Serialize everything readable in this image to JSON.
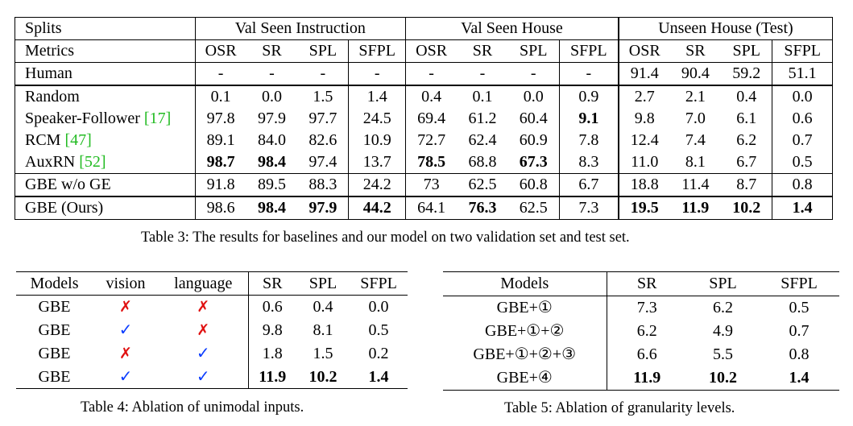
{
  "table3": {
    "header_groups": [
      "Splits",
      "Val Seen Instruction",
      "Val Seen House",
      "Unseen House (Test)"
    ],
    "metrics_label": "Metrics",
    "metrics": [
      "OSR",
      "SR",
      "SPL",
      "SFPL",
      "OSR",
      "SR",
      "SPL",
      "SFPL",
      "OSR",
      "SR",
      "SPL",
      "SFPL"
    ],
    "rows": [
      {
        "name": "Human",
        "cite": "",
        "values": [
          "-",
          "-",
          "-",
          "-",
          "-",
          "-",
          "-",
          "-",
          "91.4",
          "90.4",
          "59.2",
          "51.1"
        ],
        "bold": []
      },
      {
        "name": "Random",
        "cite": "",
        "values": [
          "0.1",
          "0.0",
          "1.5",
          "1.4",
          "0.4",
          "0.1",
          "0.0",
          "0.9",
          "2.7",
          "2.1",
          "0.4",
          "0.0"
        ],
        "bold": []
      },
      {
        "name": "Speaker-Follower",
        "cite": "17",
        "values": [
          "97.8",
          "97.9",
          "97.7",
          "24.5",
          "69.4",
          "61.2",
          "60.4",
          "9.1",
          "9.8",
          "7.0",
          "6.1",
          "0.6"
        ],
        "bold": [
          7
        ]
      },
      {
        "name": "RCM",
        "cite": "47",
        "values": [
          "89.1",
          "84.0",
          "82.6",
          "10.9",
          "72.7",
          "62.4",
          "60.9",
          "7.8",
          "12.4",
          "7.4",
          "6.2",
          "0.7"
        ],
        "bold": []
      },
      {
        "name": "AuxRN",
        "cite": "52",
        "values": [
          "98.7",
          "98.4",
          "97.4",
          "13.7",
          "78.5",
          "68.8",
          "67.3",
          "8.3",
          "11.0",
          "8.1",
          "6.7",
          "0.5"
        ],
        "bold": [
          0,
          1,
          4,
          6
        ]
      },
      {
        "name": "GBE w/o GE",
        "cite": "",
        "values": [
          "91.8",
          "89.5",
          "88.3",
          "24.2",
          "73",
          "62.5",
          "60.8",
          "6.7",
          "18.8",
          "11.4",
          "8.7",
          "0.8"
        ],
        "bold": []
      },
      {
        "name": "GBE (Ours)",
        "cite": "",
        "values": [
          "98.6",
          "98.4",
          "97.9",
          "44.2",
          "64.1",
          "76.3",
          "62.5",
          "7.3",
          "19.5",
          "11.9",
          "10.2",
          "1.4"
        ],
        "bold": [
          1,
          2,
          3,
          5,
          8,
          9,
          10,
          11
        ]
      }
    ],
    "caption": "Table 3: The results for baselines and our model on two validation set and test set."
  },
  "table4": {
    "headers": [
      "Models",
      "vision",
      "language",
      "SR",
      "SPL",
      "SFPL"
    ],
    "rows": [
      {
        "model": "GBE",
        "vision": "✗",
        "language": "✗",
        "values": [
          "0.6",
          "0.4",
          "0.0"
        ],
        "bold": false
      },
      {
        "model": "GBE",
        "vision": "✓",
        "language": "✗",
        "values": [
          "9.8",
          "8.1",
          "0.5"
        ],
        "bold": false
      },
      {
        "model": "GBE",
        "vision": "✗",
        "language": "✓",
        "values": [
          "1.8",
          "1.5",
          "0.2"
        ],
        "bold": false
      },
      {
        "model": "GBE",
        "vision": "✓",
        "language": "✓",
        "values": [
          "11.9",
          "10.2",
          "1.4"
        ],
        "bold": true
      }
    ],
    "caption": "Table 4: Ablation of unimodal inputs."
  },
  "table5": {
    "headers": [
      "Models",
      "SR",
      "SPL",
      "SFPL"
    ],
    "rows": [
      {
        "model": "GBE+①",
        "values": [
          "7.3",
          "6.2",
          "0.5"
        ],
        "bold": false
      },
      {
        "model": "GBE+①+②",
        "values": [
          "6.2",
          "4.9",
          "0.7"
        ],
        "bold": false
      },
      {
        "model": "GBE+①+②+③",
        "values": [
          "6.6",
          "5.5",
          "0.8"
        ],
        "bold": false
      },
      {
        "model": "GBE+④",
        "values": [
          "11.9",
          "10.2",
          "1.4"
        ],
        "bold": true
      }
    ],
    "caption": "Table 5: Ablation of granularity levels."
  },
  "colors": {
    "check": "#0a3cff",
    "cross": "#e01010",
    "cite": "#22bb22"
  }
}
